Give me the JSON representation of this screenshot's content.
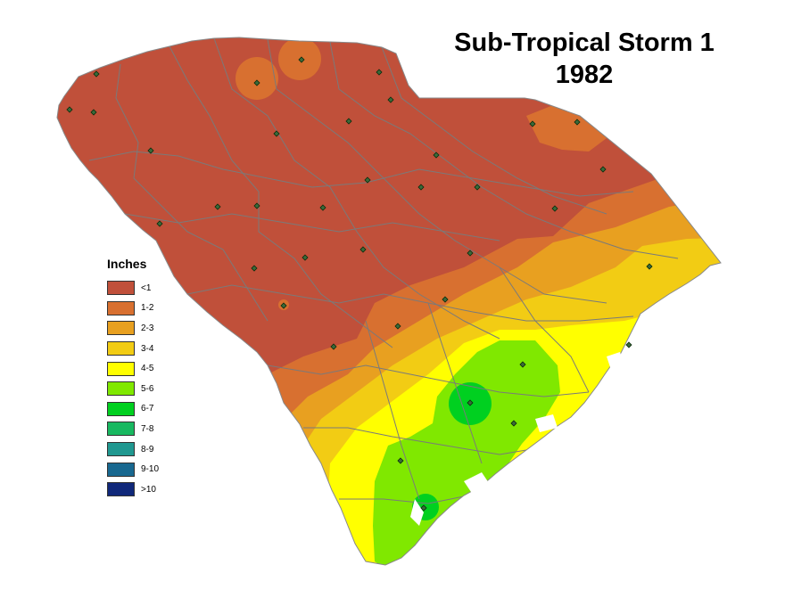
{
  "title": {
    "line1": "Sub-Tropical Storm 1",
    "line2": "1982"
  },
  "legend": {
    "title": "Inches",
    "items": [
      {
        "label": "<1",
        "color": "#c0503a"
      },
      {
        "label": "1-2",
        "color": "#d87030"
      },
      {
        "label": "2-3",
        "color": "#e8a020"
      },
      {
        "label": "3-4",
        "color": "#f2cc14"
      },
      {
        "label": "4-5",
        "color": "#ffff00"
      },
      {
        "label": "5-6",
        "color": "#80e800"
      },
      {
        "label": "6-7",
        "color": "#00d020"
      },
      {
        "label": "7-8",
        "color": "#18b860"
      },
      {
        "label": "8-9",
        "color": "#209890"
      },
      {
        "label": "9-10",
        "color": "#186890"
      },
      {
        "label": ">10",
        "color": "#10287a"
      }
    ]
  },
  "colors": {
    "county_border": "#7a7a7a",
    "station_marker": "#2a5a2a",
    "background": "#ffffff"
  }
}
